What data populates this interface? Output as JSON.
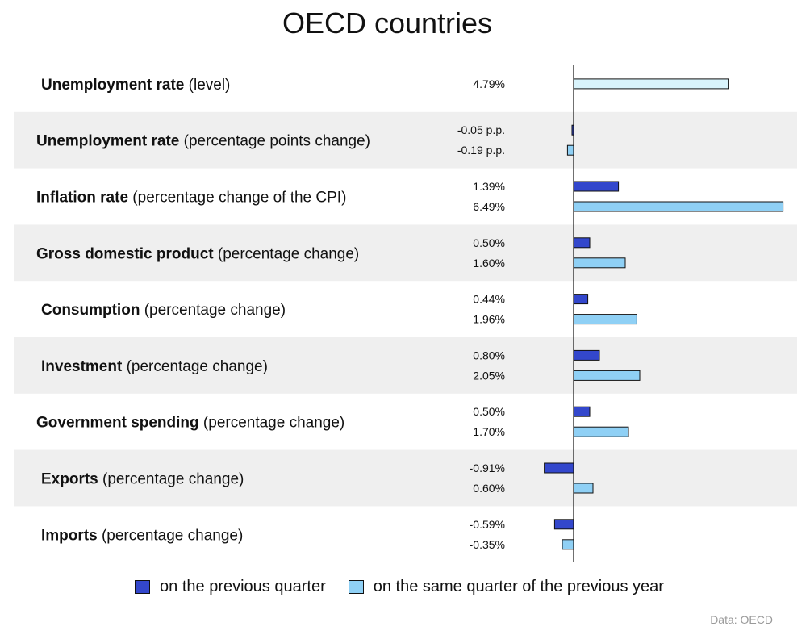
{
  "title": "OECD countries",
  "source": "Data: OECD",
  "colors": {
    "previous_quarter": "#3347cc",
    "previous_year": "#8fd0f5",
    "level": "#d8f3fb",
    "row_band": "#efefef",
    "border": "#111111"
  },
  "chart_data": {
    "type": "bar",
    "orientation": "horizontal",
    "title": "OECD countries",
    "legend": [
      {
        "name": "on the previous quarter",
        "color": "#3347cc"
      },
      {
        "name": "on the same quarter of the previous year",
        "color": "#8fd0f5"
      }
    ],
    "legend_position": "bottom",
    "rows": [
      {
        "label_bold": "Unemployment rate",
        "label_rest": " (level)",
        "bars": [
          {
            "series": "level",
            "value": 4.79,
            "label": "4.79%"
          }
        ]
      },
      {
        "label_bold": "Unemployment rate",
        "label_rest": " (percentage points change)",
        "bars": [
          {
            "series": "previous_quarter",
            "value": -0.05,
            "label": "-0.05 p.p."
          },
          {
            "series": "previous_year",
            "value": -0.19,
            "label": "-0.19 p.p."
          }
        ]
      },
      {
        "label_bold": "Inflation rate",
        "label_rest": " (percentage change of the CPI)",
        "bars": [
          {
            "series": "previous_quarter",
            "value": 1.39,
            "label": "1.39%"
          },
          {
            "series": "previous_year",
            "value": 6.49,
            "label": "6.49%"
          }
        ]
      },
      {
        "label_bold": "Gross domestic product",
        "label_rest": " (percentage change)",
        "bars": [
          {
            "series": "previous_quarter",
            "value": 0.5,
            "label": "0.50%"
          },
          {
            "series": "previous_year",
            "value": 1.6,
            "label": "1.60%"
          }
        ]
      },
      {
        "label_bold": "Consumption",
        "label_rest": " (percentage change)",
        "bars": [
          {
            "series": "previous_quarter",
            "value": 0.44,
            "label": "0.44%"
          },
          {
            "series": "previous_year",
            "value": 1.96,
            "label": "1.96%"
          }
        ]
      },
      {
        "label_bold": "Investment",
        "label_rest": " (percentage change)",
        "bars": [
          {
            "series": "previous_quarter",
            "value": 0.8,
            "label": "0.80%"
          },
          {
            "series": "previous_year",
            "value": 2.05,
            "label": "2.05%"
          }
        ]
      },
      {
        "label_bold": "Government spending",
        "label_rest": " (percentage change)",
        "bars": [
          {
            "series": "previous_quarter",
            "value": 0.5,
            "label": "0.50%"
          },
          {
            "series": "previous_year",
            "value": 1.7,
            "label": "1.70%"
          }
        ]
      },
      {
        "label_bold": "Exports",
        "label_rest": " (percentage change)",
        "bars": [
          {
            "series": "previous_quarter",
            "value": -0.91,
            "label": "-0.91%"
          },
          {
            "series": "previous_year",
            "value": 0.6,
            "label": "0.60%"
          }
        ]
      },
      {
        "label_bold": "Imports",
        "label_rest": " (percentage change)",
        "bars": [
          {
            "series": "previous_quarter",
            "value": -0.59,
            "label": "-0.59%"
          },
          {
            "series": "previous_year",
            "value": -0.35,
            "label": "-0.35%"
          }
        ]
      }
    ],
    "grid": false
  }
}
